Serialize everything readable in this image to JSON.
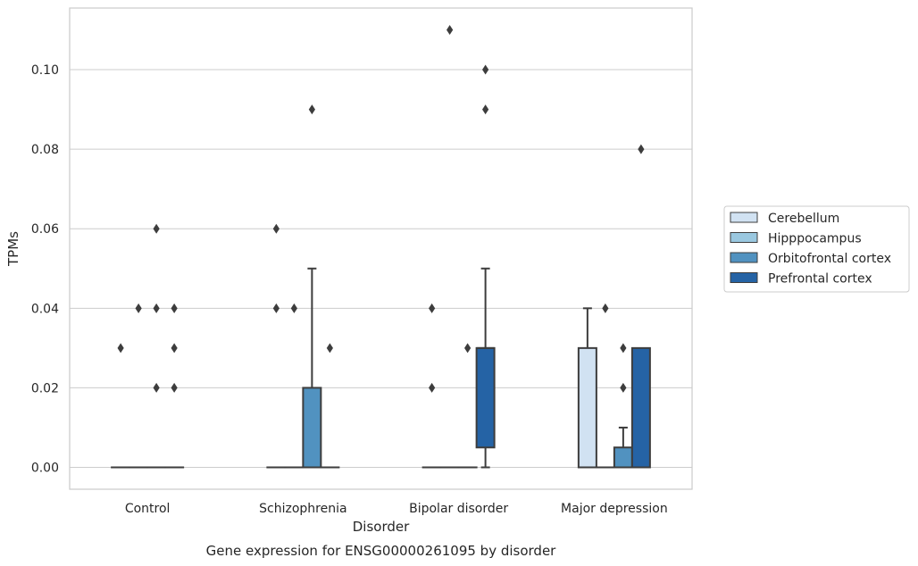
{
  "chart_data": {
    "type": "box",
    "caption": "Gene expression for ENSG00000261095 by disorder",
    "xlabel": "Disorder",
    "ylabel": "TPMs",
    "ylim": [
      -0.0055,
      0.1155
    ],
    "yticks": [
      "0.00",
      "0.02",
      "0.04",
      "0.06",
      "0.08",
      "0.10"
    ],
    "ytick_values": [
      0,
      0.02,
      0.04,
      0.06,
      0.08,
      0.1
    ],
    "grid": true,
    "legend_position": "right",
    "categories": [
      "Control",
      "Schizophrenia",
      "Bipolar disorder",
      "Major depression"
    ],
    "series": [
      {
        "name": "Cerebellum",
        "color": "#d1e2f2",
        "boxes": [
          {
            "q1": 0,
            "median": 0,
            "q3": 0,
            "whisker_low": 0,
            "whisker_high": 0,
            "outliers": [
              0.03
            ]
          },
          {
            "q1": 0,
            "median": 0,
            "q3": 0,
            "whisker_low": 0,
            "whisker_high": 0,
            "outliers": [
              0.06,
              0.04
            ]
          },
          {
            "q1": 0,
            "median": 0,
            "q3": 0,
            "whisker_low": 0,
            "whisker_high": 0,
            "outliers": [
              0.04,
              0.02
            ]
          },
          {
            "q1": 0,
            "median": 0,
            "q3": 0.03,
            "whisker_low": 0,
            "whisker_high": 0.04,
            "outliers": []
          }
        ]
      },
      {
        "name": "Hipppocampus",
        "color": "#9ac8e0",
        "boxes": [
          {
            "q1": 0,
            "median": 0,
            "q3": 0,
            "whisker_low": 0,
            "whisker_high": 0,
            "outliers": [
              0.04
            ]
          },
          {
            "q1": 0,
            "median": 0,
            "q3": 0,
            "whisker_low": 0,
            "whisker_high": 0,
            "outliers": [
              0.04
            ]
          },
          {
            "q1": 0,
            "median": 0,
            "q3": 0,
            "whisker_low": 0,
            "whisker_high": 0,
            "outliers": [
              0.11
            ]
          },
          {
            "q1": 0,
            "median": 0,
            "q3": 0,
            "whisker_low": 0,
            "whisker_high": 0,
            "outliers": [
              0.04
            ]
          }
        ]
      },
      {
        "name": "Orbitofrontal cortex",
        "color": "#5192c0",
        "boxes": [
          {
            "q1": 0,
            "median": 0,
            "q3": 0,
            "whisker_low": 0,
            "whisker_high": 0,
            "outliers": [
              0.06,
              0.04,
              0.02
            ]
          },
          {
            "q1": 0,
            "median": 0,
            "q3": 0.02,
            "whisker_low": 0,
            "whisker_high": 0.05,
            "outliers": [
              0.09
            ]
          },
          {
            "q1": 0,
            "median": 0,
            "q3": 0,
            "whisker_low": 0,
            "whisker_high": 0,
            "outliers": [
              0.03
            ]
          },
          {
            "q1": 0,
            "median": 0,
            "q3": 0.005,
            "whisker_low": 0,
            "whisker_high": 0.01,
            "outliers": [
              0.03,
              0.02
            ]
          }
        ]
      },
      {
        "name": "Prefrontal cortex",
        "color": "#2563a5",
        "boxes": [
          {
            "q1": 0,
            "median": 0,
            "q3": 0,
            "whisker_low": 0,
            "whisker_high": 0,
            "outliers": [
              0.04,
              0.03,
              0.02
            ]
          },
          {
            "q1": 0,
            "median": 0,
            "q3": 0,
            "whisker_low": 0,
            "whisker_high": 0,
            "outliers": [
              0.03
            ]
          },
          {
            "q1": 0.005,
            "median": 0.03,
            "q3": 0.03,
            "whisker_low": 0,
            "whisker_high": 0.05,
            "outliers": [
              0.1,
              0.09
            ]
          },
          {
            "q1": 0,
            "median": 0,
            "q3": 0.03,
            "whisker_low": 0,
            "whisker_high": 0.03,
            "outliers": [
              0.08
            ]
          }
        ]
      }
    ]
  }
}
